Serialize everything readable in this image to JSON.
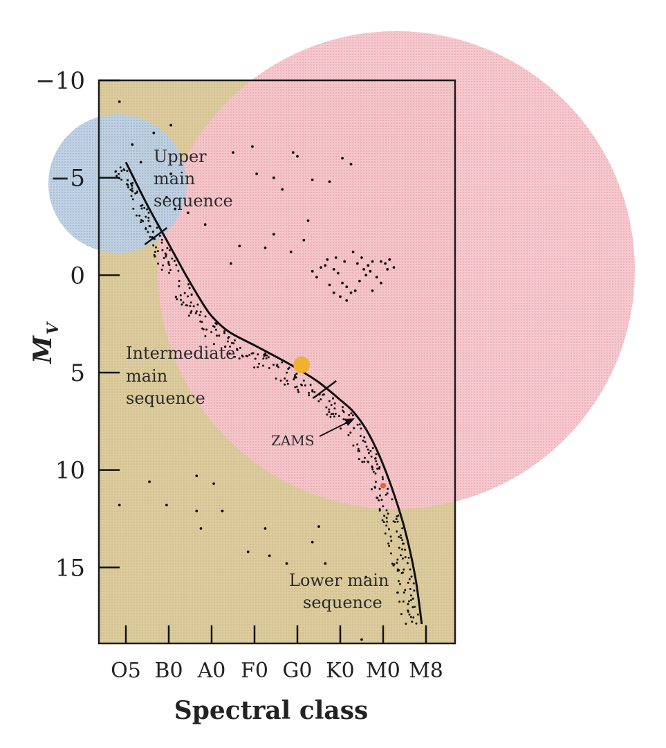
{
  "chart_data": {
    "type": "scatter",
    "title": "",
    "xlabel": "Spectral class",
    "ylabel_main": "M",
    "ylabel_sub": "V",
    "categories": [
      "O5",
      "B0",
      "A0",
      "F0",
      "G0",
      "K0",
      "M0",
      "M8"
    ],
    "ylim": [
      18.9,
      -10
    ],
    "yticks": [
      -10,
      -5,
      0,
      5,
      10,
      15
    ],
    "ytick_labels": [
      "−10",
      "−5",
      "0",
      "5",
      "10",
      "15"
    ],
    "grid": false,
    "colors": {
      "background": "#dccb9c",
      "upper_region": "#b9cde0",
      "intermediate_region": "#f3bcc4",
      "sun_marker": "#f0b032",
      "red_dwarf_marker": "#e8602a",
      "curve": "#111111"
    },
    "regions": [
      {
        "name": "Upper main sequence",
        "label_lines": [
          "Upper",
          "main",
          "sequence"
        ]
      },
      {
        "name": "Intermediate main sequence",
        "label_lines": [
          "Intermediate",
          "main",
          "sequence"
        ]
      },
      {
        "name": "Lower main sequence",
        "label_lines": [
          "Lower main",
          "sequence"
        ]
      }
    ],
    "zams_label": "ZAMS",
    "zams_curve": [
      [
        0.0,
        -5.8
      ],
      [
        0.5,
        -3.6
      ],
      [
        1.0,
        -1.6
      ],
      [
        1.4,
        0.0
      ],
      [
        1.75,
        1.3
      ],
      [
        2.0,
        2.1
      ],
      [
        2.4,
        2.9
      ],
      [
        3.0,
        3.6
      ],
      [
        3.6,
        4.3
      ],
      [
        4.0,
        4.8
      ],
      [
        4.5,
        5.5
      ],
      [
        5.0,
        6.4
      ],
      [
        5.3,
        7.0
      ],
      [
        5.6,
        7.9
      ],
      [
        5.9,
        9.2
      ],
      [
        6.2,
        10.9
      ],
      [
        6.5,
        13.0
      ],
      [
        6.75,
        15.5
      ],
      [
        6.9,
        17.9
      ]
    ],
    "boundary_markers": [
      {
        "x": 0.7,
        "y": -2.0
      },
      {
        "x": 4.65,
        "y": 5.85
      }
    ],
    "sun": {
      "x": 4.1,
      "y": 4.6
    },
    "red_dwarf": {
      "x": 6.0,
      "y": 10.8
    },
    "field_stars": [
      [
        -0.15,
        -8.9
      ],
      [
        0.15,
        -6.7
      ],
      [
        0.35,
        -5.8
      ],
      [
        0.65,
        -7.3
      ],
      [
        1.05,
        -7.7
      ],
      [
        1.05,
        -5.2
      ],
      [
        0.95,
        -4.0
      ],
      [
        1.15,
        -3.4
      ],
      [
        1.45,
        -3.2
      ],
      [
        1.85,
        -2.6
      ],
      [
        2.5,
        -6.3
      ],
      [
        2.95,
        -6.6
      ],
      [
        3.05,
        -5.2
      ],
      [
        3.45,
        -5.0
      ],
      [
        3.65,
        -4.4
      ],
      [
        3.9,
        -6.3
      ],
      [
        4.0,
        -6.1
      ],
      [
        4.35,
        -4.9
      ],
      [
        4.75,
        -4.8
      ],
      [
        5.05,
        -6.0
      ],
      [
        5.25,
        -5.7
      ],
      [
        4.25,
        -2.8
      ],
      [
        3.45,
        -2.1
      ],
      [
        4.15,
        -1.8
      ],
      [
        3.85,
        -1.2
      ],
      [
        3.25,
        -1.4
      ],
      [
        2.65,
        -1.5
      ],
      [
        2.45,
        -0.6
      ],
      [
        4.35,
        -0.2
      ],
      [
        4.45,
        0.1
      ],
      [
        4.55,
        -0.4
      ],
      [
        4.65,
        -0.5
      ],
      [
        4.7,
        -0.8
      ],
      [
        4.85,
        -0.3
      ],
      [
        4.95,
        -0.1
      ],
      [
        5.05,
        0.4
      ],
      [
        5.15,
        0.6
      ],
      [
        5.25,
        0.9
      ],
      [
        5.35,
        0.8
      ],
      [
        5.45,
        0.3
      ],
      [
        5.55,
        -0.3
      ],
      [
        5.65,
        -0.5
      ],
      [
        5.75,
        -0.7
      ],
      [
        5.95,
        -0.7
      ],
      [
        6.05,
        -0.6
      ],
      [
        6.15,
        -0.8
      ],
      [
        6.25,
        -0.4
      ],
      [
        5.85,
        0.1
      ],
      [
        5.95,
        0.4
      ],
      [
        5.75,
        0.8
      ],
      [
        4.9,
        -0.9
      ],
      [
        5.1,
        -0.7
      ],
      [
        5.5,
        -0.9
      ],
      [
        5.7,
        -0.2
      ],
      [
        4.75,
        0.5
      ],
      [
        4.85,
        0.9
      ],
      [
        5.0,
        1.1
      ],
      [
        5.15,
        1.3
      ],
      [
        6.1,
        -0.3
      ],
      [
        5.6,
        0.0
      ],
      [
        5.3,
        -1.2
      ],
      [
        5.4,
        -0.6
      ],
      [
        -0.15,
        11.8
      ],
      [
        0.55,
        10.6
      ],
      [
        0.95,
        11.8
      ],
      [
        1.65,
        10.3
      ],
      [
        1.65,
        12.1
      ],
      [
        2.05,
        10.7
      ],
      [
        1.75,
        13.0
      ],
      [
        2.25,
        12.1
      ],
      [
        2.85,
        14.2
      ],
      [
        3.35,
        14.4
      ],
      [
        3.75,
        14.8
      ],
      [
        3.25,
        13.0
      ],
      [
        4.35,
        13.7
      ],
      [
        4.5,
        12.9
      ],
      [
        4.65,
        14.8
      ],
      [
        5.6,
        15.5
      ],
      [
        5.5,
        18.7
      ]
    ]
  }
}
